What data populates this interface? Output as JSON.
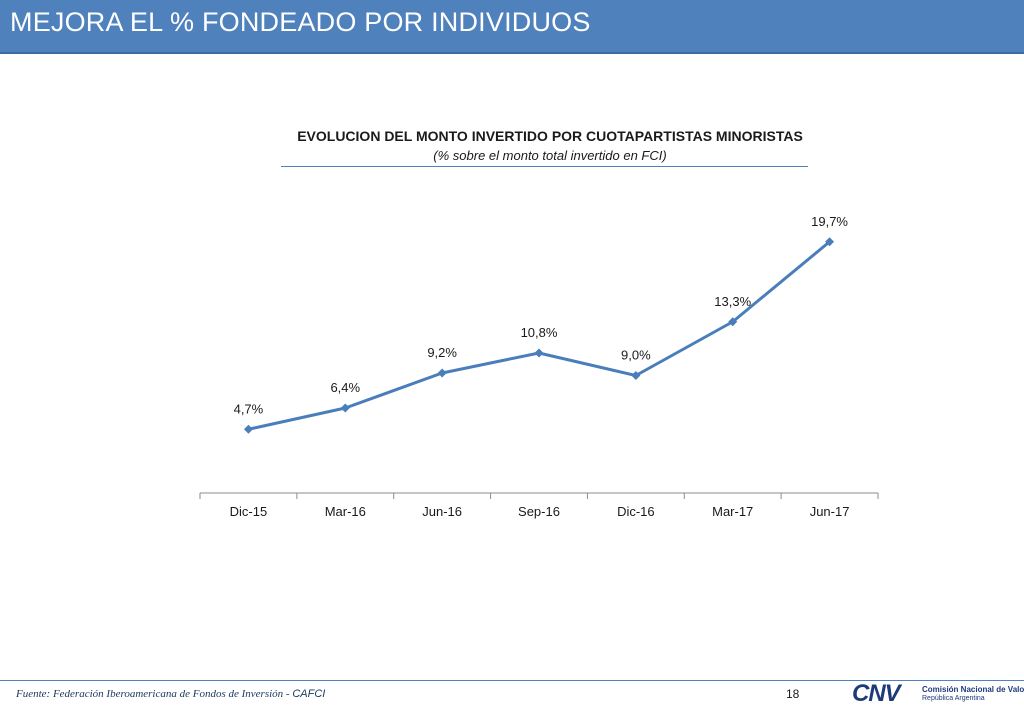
{
  "slide": {
    "title": "MEJORA EL % FONDEADO POR INDIVIDUOS",
    "page_number": "18"
  },
  "footer": {
    "source_prefix": "Fuente: Federación Iberoamericana de Fondos de Inversión - ",
    "source_org": "CAFCI"
  },
  "logo": {
    "mark": "CNV",
    "name": "Comisión Nacional de Valores",
    "country": "República Argentina"
  },
  "colors": {
    "header": "#4f81bd",
    "series": "#4a7ebb",
    "axis": "#8c8c8c"
  },
  "chart_data": {
    "type": "line",
    "title": "EVOLUCION DEL MONTO INVERTIDO POR CUOTAPARTISTAS MINORISTAS",
    "subtitle": "(% sobre el monto total invertido en FCI)",
    "categories": [
      "Dic-15",
      "Mar-16",
      "Jun-16",
      "Sep-16",
      "Dic-16",
      "Mar-17",
      "Jun-17"
    ],
    "series": [
      {
        "values": [
          4.7,
          6.4,
          9.2,
          10.8,
          9.0,
          13.3,
          19.7
        ],
        "labels": [
          "4,7%",
          "6,4%",
          "9,2%",
          "10,8%",
          "9,0%",
          "13,3%",
          "19,7%"
        ]
      }
    ],
    "ylim": [
      -0.4,
      22
    ],
    "grid": false,
    "legend": "none",
    "marker": "diamond"
  }
}
